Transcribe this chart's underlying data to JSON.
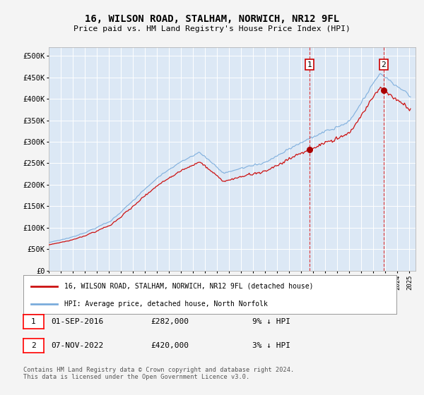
{
  "title": "16, WILSON ROAD, STALHAM, NORWICH, NR12 9FL",
  "subtitle": "Price paid vs. HM Land Registry's House Price Index (HPI)",
  "hpi_line_color": "#7aacdc",
  "price_line_color": "#cc1111",
  "point_color": "#aa0000",
  "fig_bg_color": "#f4f4f4",
  "plot_bg_color": "#dce8f5",
  "grid_color": "#ffffff",
  "dashed_line_color": "#dd2222",
  "ylabel_ticks": [
    "£0",
    "£50K",
    "£100K",
    "£150K",
    "£200K",
    "£250K",
    "£300K",
    "£350K",
    "£400K",
    "£450K",
    "£500K"
  ],
  "ytick_values": [
    0,
    50000,
    100000,
    150000,
    200000,
    250000,
    300000,
    350000,
    400000,
    450000,
    500000
  ],
  "ylim": [
    0,
    520000
  ],
  "sale1_date_num": 2016.67,
  "sale1_price": 282000,
  "sale1_label": "1",
  "sale2_date_num": 2022.85,
  "sale2_price": 420000,
  "sale2_label": "2",
  "legend_line1": "16, WILSON ROAD, STALHAM, NORWICH, NR12 9FL (detached house)",
  "legend_line2": "HPI: Average price, detached house, North Norfolk",
  "table_row1": [
    "1",
    "01-SEP-2016",
    "£282,000",
    "9% ↓ HPI"
  ],
  "table_row2": [
    "2",
    "07-NOV-2022",
    "£420,000",
    "3% ↓ HPI"
  ],
  "footer": "Contains HM Land Registry data © Crown copyright and database right 2024.\nThis data is licensed under the Open Government Licence v3.0.",
  "xmin": 1995.0,
  "xmax": 2025.5
}
